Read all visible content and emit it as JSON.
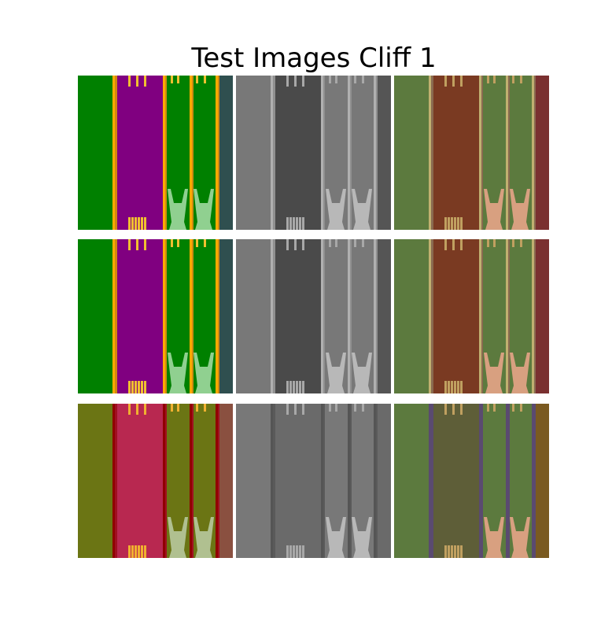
{
  "figure": {
    "title": "Test Images Cliff 1"
  },
  "panels": [
    {
      "row": 1,
      "col": 1,
      "variant": "original-color"
    },
    {
      "row": 1,
      "col": 2,
      "variant": "grayscale"
    },
    {
      "row": 1,
      "col": 3,
      "variant": "color-shifted"
    },
    {
      "row": 2,
      "col": 1,
      "variant": "original-color"
    },
    {
      "row": 2,
      "col": 2,
      "variant": "grayscale"
    },
    {
      "row": 2,
      "col": 3,
      "variant": "color-shifted"
    },
    {
      "row": 3,
      "col": 1,
      "variant": "recolored"
    },
    {
      "row": 3,
      "col": 2,
      "variant": "grayscale"
    },
    {
      "row": 3,
      "col": 3,
      "variant": "color-shifted"
    }
  ],
  "palettes": {
    "original-color": {
      "bg": "#008000",
      "band": "#800080",
      "edge": "#ffaa00",
      "edgeInner": "#d08a10",
      "lane": "#008000",
      "dark": "#2f4f4f",
      "figure": "#90d090",
      "stripe": "#f0c030"
    },
    "grayscale": {
      "bg": "#787878",
      "band": "#4a4a4a",
      "edge": "#b0b0b0",
      "edgeInner": "#909090",
      "lane": "#787878",
      "dark": "#555555",
      "figure": "#b8b8b8",
      "stripe": "#a8a8a8"
    },
    "color-shifted": {
      "bg": "#5c7a3e",
      "band": "#7a3a22",
      "edge": "#c0b070",
      "edgeInner": "#8a6a50",
      "lane": "#5c7a3e",
      "dark": "#7a3030",
      "figure": "#d8a080",
      "stripe": "#c0a060"
    },
    "recolored": {
      "bg": "#6b7514",
      "band": "#b82850",
      "edge": "#900000",
      "edgeInner": "#a01020",
      "lane": "#6b7514",
      "dark": "#8a5040",
      "figure": "#b0c090",
      "stripe": "#f0b030"
    },
    "grayscale-alt": {
      "bg": "#787878",
      "band": "#6a6a6a",
      "edge": "#555555",
      "edgeInner": "#5a5a5a",
      "lane": "#787878",
      "dark": "#6a6a6a",
      "figure": "#b8b8b8",
      "stripe": "#a8a8a8"
    },
    "color-shifted-alt": {
      "bg": "#5c7a3e",
      "band": "#5e5e38",
      "edge": "#5a4a70",
      "edgeInner": "#5a4a70",
      "lane": "#5c7a3e",
      "dark": "#7a5a20",
      "figure": "#d8a080",
      "stripe": "#c0a060"
    }
  }
}
